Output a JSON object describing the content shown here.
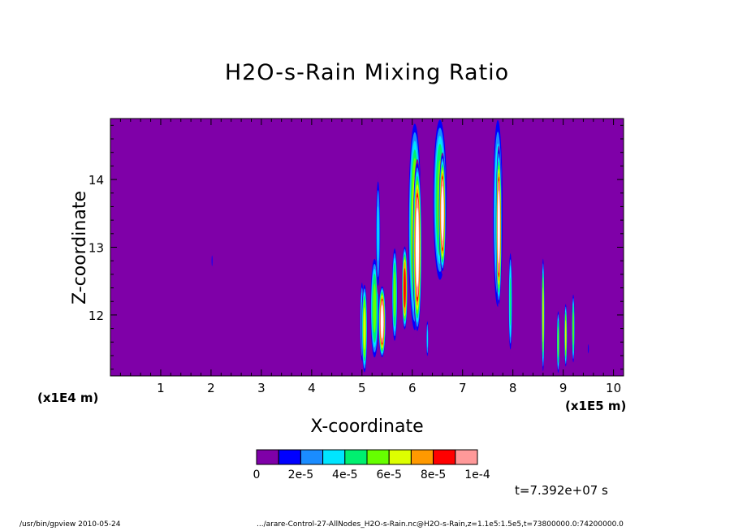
{
  "chart_data": {
    "type": "heatmap",
    "title": "H2O-s-Rain Mixing Ratio",
    "xlabel": "X-coordinate",
    "ylabel": "Z-coordinate",
    "x_scale_label": "(x1E5 m)",
    "y_scale_label": "(x1E4 m)",
    "xlim": [
      0,
      10.2
    ],
    "ylim": [
      11.1,
      14.9
    ],
    "x_ticks": [
      "1",
      "2",
      "3",
      "4",
      "5",
      "6",
      "7",
      "8",
      "9",
      "10"
    ],
    "y_ticks": [
      "12",
      "13",
      "14"
    ],
    "grid": false,
    "colorbar": {
      "ticks": [
        "0",
        "2e-5",
        "4e-5",
        "6e-5",
        "8e-5",
        "1e-4"
      ],
      "levels": [
        0,
        1e-05,
        2e-05,
        3e-05,
        4e-05,
        5e-05,
        6e-05,
        7e-05,
        8e-05,
        9e-05,
        0.0001
      ],
      "colors": [
        "#7f00a8",
        "#0000ff",
        "#1a8cff",
        "#00e5ff",
        "#00f070",
        "#66ff00",
        "#ddff00",
        "#ff9900",
        "#ff0000",
        "#ff9999"
      ],
      "over_color": "#ffffff"
    },
    "cells": [
      {
        "x": 2.02,
        "z": 12.8,
        "dx": 0.03,
        "dz": 0.35,
        "v": 1.2e-05
      },
      {
        "x": 5.0,
        "z": 11.9,
        "dx": 0.08,
        "dz": 1.3,
        "v": 4e-05
      },
      {
        "x": 5.05,
        "z": 11.8,
        "dx": 0.12,
        "dz": 1.4,
        "v": 6e-05
      },
      {
        "x": 5.25,
        "z": 12.1,
        "dx": 0.18,
        "dz": 1.6,
        "v": 5e-05
      },
      {
        "x": 5.32,
        "z": 13.2,
        "dx": 0.1,
        "dz": 1.8,
        "v": 3e-05
      },
      {
        "x": 5.4,
        "z": 11.9,
        "dx": 0.15,
        "dz": 1.1,
        "v": 0.00012
      },
      {
        "x": 5.65,
        "z": 12.3,
        "dx": 0.12,
        "dz": 1.5,
        "v": 5e-05
      },
      {
        "x": 5.85,
        "z": 12.4,
        "dx": 0.12,
        "dz": 1.3,
        "v": 8e-05
      },
      {
        "x": 6.05,
        "z": 13.3,
        "dx": 0.28,
        "dz": 3.3,
        "v": 6e-05
      },
      {
        "x": 6.1,
        "z": 13.0,
        "dx": 0.18,
        "dz": 2.6,
        "v": 0.00012
      },
      {
        "x": 6.55,
        "z": 13.7,
        "dx": 0.3,
        "dz": 2.6,
        "v": 5e-05
      },
      {
        "x": 6.6,
        "z": 13.5,
        "dx": 0.14,
        "dz": 1.8,
        "v": 0.00012
      },
      {
        "x": 6.3,
        "z": 11.65,
        "dx": 0.04,
        "dz": 0.6,
        "v": 3e-05
      },
      {
        "x": 7.7,
        "z": 13.5,
        "dx": 0.22,
        "dz": 3.1,
        "v": 4e-05
      },
      {
        "x": 7.72,
        "z": 13.3,
        "dx": 0.12,
        "dz": 2.4,
        "v": 0.00012
      },
      {
        "x": 7.95,
        "z": 12.2,
        "dx": 0.08,
        "dz": 1.6,
        "v": 4e-05
      },
      {
        "x": 8.6,
        "z": 12.0,
        "dx": 0.06,
        "dz": 1.8,
        "v": 6e-05
      },
      {
        "x": 8.9,
        "z": 11.6,
        "dx": 0.06,
        "dz": 1.0,
        "v": 5e-05
      },
      {
        "x": 9.05,
        "z": 11.7,
        "dx": 0.06,
        "dz": 1.0,
        "v": 6e-05
      },
      {
        "x": 9.2,
        "z": 11.8,
        "dx": 0.06,
        "dz": 1.1,
        "v": 5e-05
      },
      {
        "x": 9.5,
        "z": 11.5,
        "dx": 0.03,
        "dz": 0.3,
        "v": 1.2e-05
      }
    ]
  },
  "time_label": "t=7.392e+07 s",
  "footer": {
    "left": "/usr/bin/gpview  2010-05-24",
    "right": ".../arare-Control-27-AllNodes_H2O-s-Rain.nc@H2O-s-Rain,z=1.1e5:1.5e5,t=73800000.0:74200000.0"
  }
}
